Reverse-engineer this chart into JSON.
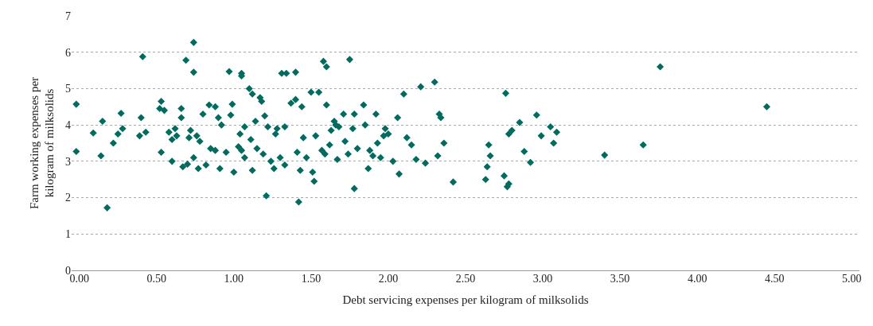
{
  "chart_data": {
    "type": "scatter",
    "xlabel": "Debt servicing expenses per kilogram of milksolids",
    "ylabel": "Farm working expenses per kilogram of milksolids",
    "marker": "diamond",
    "grid": "y",
    "xlim": [
      -0.05,
      5.05
    ],
    "ylim": [
      0,
      7
    ],
    "xticks": [
      {
        "value": 0,
        "label": "0.00"
      },
      {
        "value": 0.5,
        "label": "0.50"
      },
      {
        "value": 1,
        "label": "1.00"
      },
      {
        "value": 1.5,
        "label": "1.50"
      },
      {
        "value": 2,
        "label": "2.00"
      },
      {
        "value": 2.5,
        "label": "2.50"
      },
      {
        "value": 3,
        "label": "3.00"
      },
      {
        "value": 3.5,
        "label": "3.50"
      },
      {
        "value": 4,
        "label": "4.00"
      },
      {
        "value": 4.5,
        "label": "4.50"
      },
      {
        "value": 5,
        "label": "5.00"
      }
    ],
    "yticks": [
      0,
      1,
      2,
      3,
      4,
      5,
      6,
      7
    ],
    "series": [
      {
        "color": "#006b5e",
        "x": [
          -0.02,
          -0.02,
          0.09,
          0.14,
          0.15,
          0.18,
          0.22,
          0.25,
          0.27,
          0.28,
          0.41,
          0.4,
          0.39,
          0.43,
          0.52,
          0.53,
          0.55,
          0.53,
          0.58,
          0.6,
          0.6,
          0.62,
          0.63,
          0.66,
          0.66,
          0.67,
          0.69,
          0.7,
          0.72,
          0.71,
          0.74,
          0.74,
          0.74,
          0.76,
          0.77,
          0.78,
          0.8,
          0.82,
          0.84,
          0.85,
          0.88,
          0.88,
          0.9,
          0.91,
          0.92,
          0.95,
          0.97,
          0.98,
          0.99,
          1.0,
          1.03,
          1.04,
          1.05,
          1.05,
          1.05,
          1.07,
          1.07,
          1.1,
          1.11,
          1.12,
          1.12,
          1.14,
          1.15,
          1.17,
          1.18,
          1.19,
          1.2,
          1.21,
          1.22,
          1.24,
          1.26,
          1.27,
          1.28,
          1.3,
          1.31,
          1.33,
          1.33,
          1.34,
          1.37,
          1.4,
          1.4,
          1.41,
          1.42,
          1.43,
          1.44,
          1.45,
          1.47,
          1.5,
          1.51,
          1.52,
          1.53,
          1.55,
          1.57,
          1.58,
          1.59,
          1.6,
          1.6,
          1.62,
          1.63,
          1.65,
          1.66,
          1.67,
          1.68,
          1.71,
          1.72,
          1.74,
          1.75,
          1.77,
          1.78,
          1.78,
          1.8,
          1.84,
          1.85,
          1.87,
          1.88,
          1.9,
          1.92,
          1.93,
          1.95,
          1.97,
          1.98,
          2.0,
          2.03,
          2.06,
          2.07,
          2.1,
          2.12,
          2.15,
          2.18,
          2.21,
          2.24,
          2.3,
          2.32,
          2.33,
          2.34,
          2.36,
          2.42,
          2.63,
          2.64,
          2.65,
          2.66,
          2.76,
          2.75,
          2.77,
          2.78,
          2.78,
          2.8,
          2.85,
          2.88,
          2.92,
          2.96,
          2.99,
          3.05,
          3.07,
          3.09,
          3.4,
          3.65,
          3.76,
          4.45
        ],
        "values": [
          4.57,
          3.27,
          3.78,
          3.15,
          4.1,
          1.72,
          3.5,
          3.75,
          4.32,
          3.9,
          5.88,
          4.2,
          3.7,
          3.8,
          4.45,
          4.65,
          4.4,
          3.25,
          3.8,
          3.6,
          3.0,
          3.9,
          3.7,
          4.2,
          4.45,
          2.85,
          5.78,
          2.92,
          3.85,
          3.65,
          6.27,
          5.45,
          3.1,
          3.7,
          2.8,
          3.55,
          4.3,
          2.9,
          4.55,
          3.35,
          4.5,
          3.3,
          4.2,
          2.8,
          4.0,
          3.25,
          5.47,
          4.27,
          4.57,
          2.7,
          3.4,
          3.75,
          3.3,
          5.42,
          5.35,
          3.1,
          3.95,
          5.0,
          3.6,
          4.85,
          2.75,
          4.1,
          3.35,
          4.75,
          4.65,
          3.2,
          4.25,
          2.05,
          3.95,
          3.0,
          2.8,
          3.75,
          3.9,
          3.1,
          5.42,
          2.9,
          3.95,
          5.42,
          4.6,
          5.45,
          4.7,
          3.25,
          1.88,
          2.75,
          4.5,
          3.65,
          3.1,
          4.9,
          2.7,
          2.45,
          3.7,
          4.9,
          3.3,
          5.75,
          3.2,
          4.55,
          5.6,
          3.45,
          3.85,
          4.1,
          4.0,
          3.05,
          3.95,
          4.3,
          3.55,
          3.2,
          5.8,
          3.9,
          2.25,
          4.3,
          3.35,
          4.55,
          4.0,
          2.8,
          3.3,
          3.15,
          4.3,
          3.5,
          3.1,
          3.7,
          3.9,
          3.75,
          3.0,
          4.2,
          2.65,
          4.85,
          3.65,
          3.45,
          3.05,
          5.05,
          2.95,
          5.18,
          3.15,
          4.3,
          4.2,
          3.5,
          2.43,
          2.5,
          2.85,
          3.45,
          3.15,
          4.87,
          2.6,
          2.3,
          2.38,
          3.75,
          3.85,
          4.07,
          3.27,
          2.97,
          4.27,
          3.7,
          3.95,
          3.5,
          3.8,
          3.17,
          3.45,
          5.6,
          4.5
        ]
      }
    ]
  }
}
